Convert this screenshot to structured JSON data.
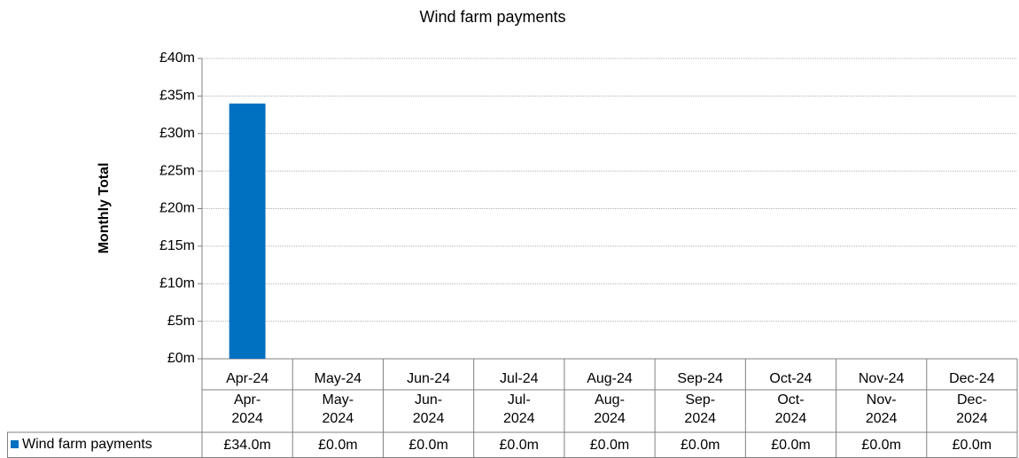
{
  "chart_data": {
    "type": "bar",
    "title": "Wind farm payments",
    "y_label": "Monthly Total",
    "categories": [
      "Apr-24",
      "May-24",
      "Jun-24",
      "Jul-24",
      "Aug-24",
      "Sep-24",
      "Oct-24",
      "Nov-24",
      "Dec-24"
    ],
    "table_categories": [
      "Apr-2024",
      "May-2024",
      "Jun-2024",
      "Jul-2024",
      "Aug-2024",
      "Sep-2024",
      "Oct-2024",
      "Nov-2024",
      "Dec-2024"
    ],
    "series": [
      {
        "name": "Wind farm payments",
        "color": "#0070C0",
        "values": [
          34,
          0,
          0,
          0,
          0,
          0,
          0,
          0,
          0
        ],
        "value_labels": [
          "£34.0m",
          "£0.0m",
          "£0.0m",
          "£0.0m",
          "£0.0m",
          "£0.0m",
          "£0.0m",
          "£0.0m",
          "£0.0m"
        ]
      }
    ],
    "ylim": [
      0,
      40
    ],
    "yticks": [
      {
        "value": 0,
        "label": "£0m"
      },
      {
        "value": 5,
        "label": "£5m"
      },
      {
        "value": 10,
        "label": "£10m"
      },
      {
        "value": 15,
        "label": "£15m"
      },
      {
        "value": 20,
        "label": "£20m"
      },
      {
        "value": 25,
        "label": "£25m"
      },
      {
        "value": 30,
        "label": "£30m"
      },
      {
        "value": 35,
        "label": "£35m"
      },
      {
        "value": 40,
        "label": "£40m"
      }
    ],
    "grid": true
  }
}
